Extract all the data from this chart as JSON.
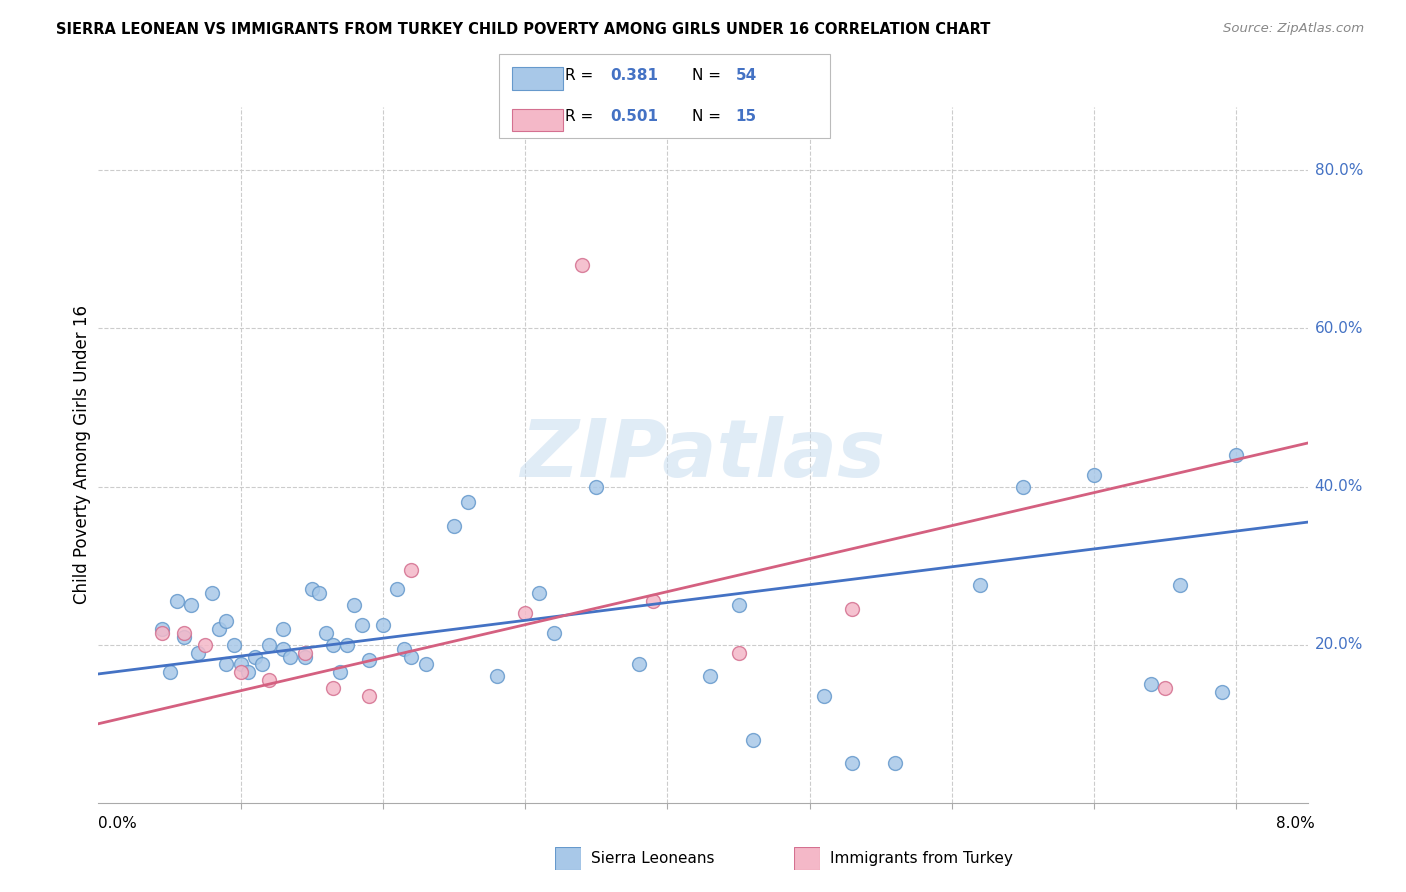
{
  "title": "SIERRA LEONEAN VS IMMIGRANTS FROM TURKEY CHILD POVERTY AMONG GIRLS UNDER 16 CORRELATION CHART",
  "source": "Source: ZipAtlas.com",
  "ylabel": "Child Poverty Among Girls Under 16",
  "legend_label1": "Sierra Leoneans",
  "legend_label2": "Immigrants from Turkey",
  "color_blue_fill": "#a8c8e8",
  "color_blue_edge": "#6699cc",
  "color_pink_fill": "#f4b8c8",
  "color_pink_edge": "#d47090",
  "color_blue_line": "#4472c4",
  "color_pink_line": "#d46080",
  "watermark": "ZIPatlas",
  "blue_points_x": [
    0.00045,
    0.0005,
    0.00055,
    0.0006,
    0.00065,
    0.0007,
    0.0008,
    0.00085,
    0.0009,
    0.0009,
    0.00095,
    0.001,
    0.00105,
    0.0011,
    0.00115,
    0.0012,
    0.0013,
    0.0013,
    0.00135,
    0.00145,
    0.0015,
    0.00155,
    0.0016,
    0.00165,
    0.0017,
    0.00175,
    0.0018,
    0.00185,
    0.0019,
    0.002,
    0.0021,
    0.00215,
    0.0022,
    0.0023,
    0.0025,
    0.0026,
    0.0028,
    0.0031,
    0.0032,
    0.0035,
    0.0038,
    0.0043,
    0.0045,
    0.0046,
    0.0051,
    0.0053,
    0.0056,
    0.0062,
    0.0065,
    0.007,
    0.0074,
    0.0076,
    0.0079,
    0.008
  ],
  "blue_points_y": [
    0.22,
    0.165,
    0.255,
    0.21,
    0.25,
    0.19,
    0.265,
    0.22,
    0.23,
    0.175,
    0.2,
    0.175,
    0.165,
    0.185,
    0.175,
    0.2,
    0.22,
    0.195,
    0.185,
    0.185,
    0.27,
    0.265,
    0.215,
    0.2,
    0.165,
    0.2,
    0.25,
    0.225,
    0.18,
    0.225,
    0.27,
    0.195,
    0.185,
    0.175,
    0.35,
    0.38,
    0.16,
    0.265,
    0.215,
    0.4,
    0.175,
    0.16,
    0.25,
    0.08,
    0.135,
    0.05,
    0.05,
    0.275,
    0.4,
    0.415,
    0.15,
    0.275,
    0.14,
    0.44
  ],
  "pink_points_x": [
    0.00045,
    0.0006,
    0.00075,
    0.001,
    0.0012,
    0.00145,
    0.00165,
    0.0019,
    0.0022,
    0.003,
    0.0034,
    0.0039,
    0.0045,
    0.0053,
    0.0075
  ],
  "pink_points_y": [
    0.215,
    0.215,
    0.2,
    0.165,
    0.155,
    0.19,
    0.145,
    0.135,
    0.295,
    0.24,
    0.68,
    0.255,
    0.19,
    0.245,
    0.145
  ],
  "xlim": [
    0.0,
    0.0085
  ],
  "ylim": [
    0.0,
    0.88
  ],
  "blue_line_x": [
    0.0,
    0.0085
  ],
  "blue_line_y": [
    0.163,
    0.355
  ],
  "pink_line_x": [
    0.0,
    0.0085
  ],
  "pink_line_y": [
    0.1,
    0.455
  ],
  "xtick_positions": [
    0.001,
    0.002,
    0.003,
    0.004,
    0.005,
    0.006,
    0.007,
    0.008
  ],
  "ytick_vals": [
    0.2,
    0.4,
    0.6,
    0.8
  ],
  "ytick_labels": [
    "20.0%",
    "40.0%",
    "60.0%",
    "80.0%"
  ]
}
